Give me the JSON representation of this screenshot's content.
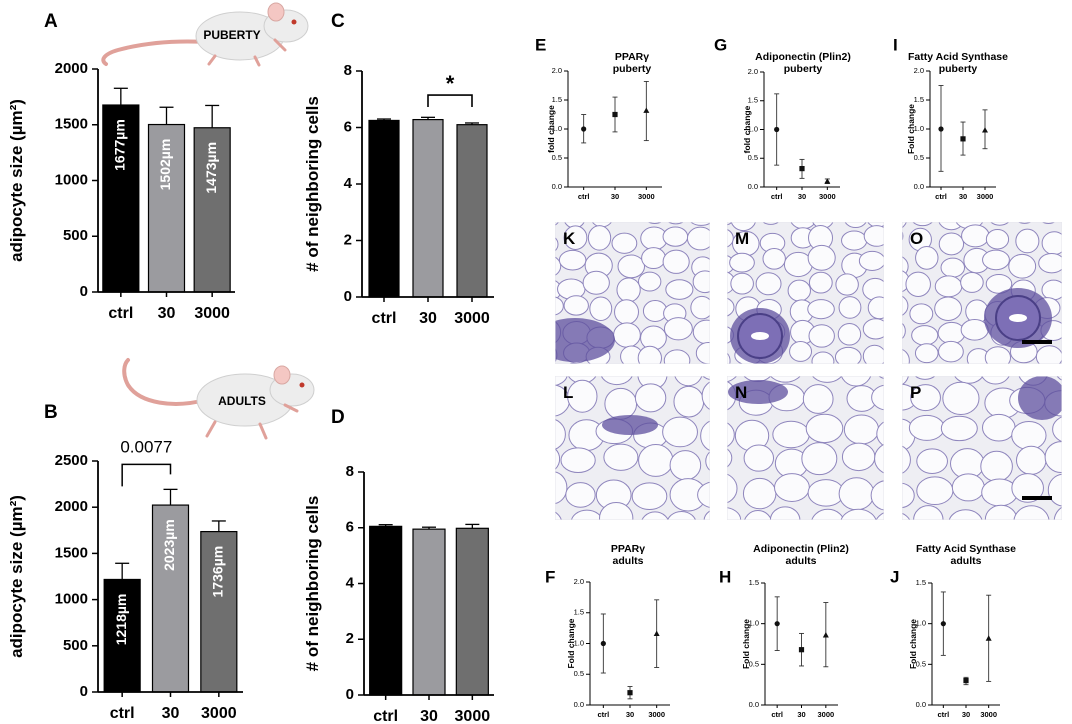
{
  "chart_data": [
    {
      "panel": "A",
      "type": "bar",
      "icon_label": "PUBERTY",
      "categories": [
        "ctrl",
        "30",
        "3000"
      ],
      "values": [
        1677,
        1502,
        1473
      ],
      "errors": [
        150,
        155,
        200
      ],
      "bar_labels": [
        "1677µm",
        "1502µm",
        "1473µm"
      ],
      "ylabel": "adipocyte size (µm²)",
      "ylim": [
        0,
        2000
      ],
      "yticks": [
        "0",
        "500",
        "1000",
        "1500",
        "2000"
      ],
      "colors": [
        "#000000",
        "#9b9b9f",
        "#6f6f6f"
      ],
      "annotation": ""
    },
    {
      "panel": "B",
      "type": "bar",
      "icon_label": "ADULTS",
      "categories": [
        "ctrl",
        "30",
        "3000"
      ],
      "values": [
        1218,
        2023,
        1736
      ],
      "errors": [
        175,
        170,
        115
      ],
      "bar_labels": [
        "1218µm",
        "2023µm",
        "1736µm"
      ],
      "ylabel": "adipocyte size (µm²)",
      "ylim": [
        0,
        2500
      ],
      "yticks": [
        "0",
        "500",
        "1000",
        "1500",
        "2000",
        "2500"
      ],
      "colors": [
        "#000000",
        "#9b9b9f",
        "#6f6f6f"
      ],
      "annotation": "0.0077"
    },
    {
      "panel": "C",
      "type": "bar",
      "categories": [
        "ctrl",
        "30",
        "3000"
      ],
      "values": [
        6.25,
        6.28,
        6.1
      ],
      "errors": [
        0.05,
        0.08,
        0.06
      ],
      "ylabel": "# of neighboring cells",
      "ylim": [
        0,
        8
      ],
      "yticks": [
        "0",
        "2",
        "4",
        "6",
        "8"
      ],
      "colors": [
        "#000000",
        "#9b9b9f",
        "#6f6f6f"
      ],
      "annotation": "*"
    },
    {
      "panel": "D",
      "type": "bar",
      "categories": [
        "ctrl",
        "30",
        "3000"
      ],
      "values": [
        6.05,
        5.95,
        5.98
      ],
      "errors": [
        0.06,
        0.07,
        0.14
      ],
      "ylabel": "# of neighboring cells",
      "ylim": [
        0,
        8
      ],
      "yticks": [
        "0",
        "2",
        "4",
        "6",
        "8"
      ],
      "colors": [
        "#000000",
        "#9b9b9f",
        "#6f6f6f"
      ]
    },
    {
      "panel": "E",
      "type": "scatter",
      "title": [
        "PPARγ",
        "puberty"
      ],
      "categories": [
        "ctrl",
        "30",
        "3000"
      ],
      "values": [
        1.0,
        1.25,
        1.32
      ],
      "low": [
        0.76,
        0.95,
        0.8
      ],
      "high": [
        1.25,
        1.55,
        1.82
      ],
      "markers": [
        "circle",
        "square",
        "triangle"
      ],
      "ylabel": "fold change",
      "ylim": [
        0,
        2.0
      ],
      "yticks": [
        "0.0",
        "0.5",
        "1.0",
        "1.5",
        "2.0"
      ]
    },
    {
      "panel": "G",
      "type": "scatter",
      "title": [
        "Adiponectin (Plin2)",
        "puberty"
      ],
      "categories": [
        "ctrl",
        "30",
        "3000"
      ],
      "values": [
        1.0,
        0.32,
        0.1
      ],
      "low": [
        0.38,
        0.15,
        0.06
      ],
      "high": [
        1.62,
        0.48,
        0.14
      ],
      "markers": [
        "circle",
        "square",
        "triangle"
      ],
      "ylabel": "fold change",
      "ylim": [
        0,
        2.0
      ],
      "yticks": [
        "0.0",
        "0.5",
        "1.0",
        "1.5",
        "2.0"
      ]
    },
    {
      "panel": "I",
      "type": "scatter",
      "title": [
        "Fatty Acid Synthase",
        "puberty"
      ],
      "categories": [
        "ctrl",
        "30",
        "3000"
      ],
      "values": [
        1.0,
        0.83,
        0.98
      ],
      "low": [
        0.27,
        0.55,
        0.66
      ],
      "high": [
        1.75,
        1.12,
        1.33
      ],
      "markers": [
        "circle",
        "square",
        "triangle"
      ],
      "ylabel": "Fold change",
      "ylim": [
        0,
        2.0
      ],
      "yticks": [
        "0.0",
        "0.5",
        "1.0",
        "1.5",
        "2.0"
      ]
    },
    {
      "panel": "F",
      "type": "scatter",
      "title": [
        "PPARγ",
        "adults"
      ],
      "categories": [
        "ctrl",
        "30",
        "3000"
      ],
      "values": [
        1.0,
        0.2,
        1.16
      ],
      "low": [
        0.52,
        0.1,
        0.61
      ],
      "high": [
        1.48,
        0.3,
        1.71
      ],
      "markers": [
        "circle",
        "square",
        "triangle"
      ],
      "ylabel": "Fold change",
      "ylim": [
        0,
        2.0
      ],
      "yticks": [
        "0.0",
        "0.5",
        "1.0",
        "1.5",
        "2.0"
      ]
    },
    {
      "panel": "H",
      "type": "scatter",
      "title": [
        "Adiponectin (Plin2)",
        "adults"
      ],
      "categories": [
        "ctrl",
        "30",
        "3000"
      ],
      "values": [
        1.0,
        0.68,
        0.86
      ],
      "low": [
        0.67,
        0.48,
        0.47
      ],
      "high": [
        1.33,
        0.88,
        1.26
      ],
      "markers": [
        "circle",
        "square",
        "triangle"
      ],
      "ylabel": "Fold change",
      "ylim": [
        0,
        1.5
      ],
      "yticks": [
        "0.0",
        "0.5",
        "1.0",
        "1.5"
      ]
    },
    {
      "panel": "J",
      "type": "scatter",
      "title": [
        "Fatty Acid Synthase",
        "adults"
      ],
      "categories": [
        "ctrl",
        "30",
        "3000"
      ],
      "values": [
        1.0,
        0.3,
        0.82
      ],
      "low": [
        0.61,
        0.25,
        0.29
      ],
      "high": [
        1.39,
        0.34,
        1.35
      ],
      "markers": [
        "circle",
        "square",
        "triangle"
      ],
      "ylabel": "Fold change",
      "ylim": [
        0,
        1.5
      ],
      "yticks": [
        "0.0",
        "0.5",
        "1.0",
        "1.5"
      ]
    }
  ],
  "histology": [
    {
      "panel": "K",
      "scale_bar": false
    },
    {
      "panel": "M",
      "scale_bar": false
    },
    {
      "panel": "O",
      "scale_bar": true
    },
    {
      "panel": "L",
      "scale_bar": false
    },
    {
      "panel": "N",
      "scale_bar": false
    },
    {
      "panel": "P",
      "scale_bar": true
    }
  ],
  "colors": {
    "stain_purple": "#5d4f9e",
    "tissue_bg": "#eeeef3",
    "cell_bg": "#fbfbfd"
  }
}
